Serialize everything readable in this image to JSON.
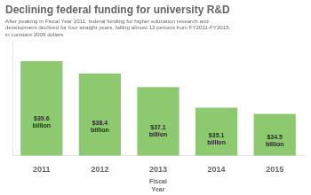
{
  "chart_data": {
    "type": "bar",
    "title": "Declining federal funding for university R&D",
    "subtitle": "After peaking in Fiscal Year 2011, federal funding for higher education research and\ndevelopment declined for four straight years, falling almost 13 percent from FY2011-FY2015.",
    "annotations": [
      "in constant 2009 dollars"
    ],
    "xlabel": "Fiscal\nYear",
    "categories": [
      "2011",
      "2012",
      "2013",
      "2014",
      "2015"
    ],
    "values": [
      39.6,
      38.4,
      37.1,
      35.1,
      34.5
    ],
    "value_labels": [
      "$39.6\nbillion",
      "$38.4\nbillion",
      "$37.1\nbillion",
      "$35.1\nbillion",
      "$34.5\nbillion"
    ],
    "data_labels": true,
    "color": "#8dc96e",
    "ylim": [
      30.5,
      41.5
    ],
    "tick_labels": "x",
    "grid": false
  }
}
